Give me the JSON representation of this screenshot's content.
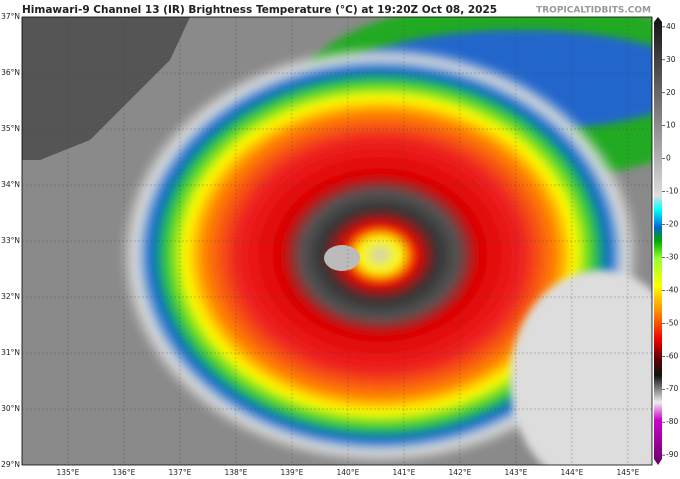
{
  "map": {
    "title": "Himawari-9 Channel 13 (IR) Brightness Temperature (°C) at 19:20Z Oct 08, 2025",
    "credit": "TROPICALTIDBITS.COM",
    "lat_range": [
      29,
      37
    ],
    "lat_ticks": [
      {
        "value": 37,
        "label": "37°N"
      },
      {
        "value": 36,
        "label": "36°N"
      },
      {
        "value": 35,
        "label": "35°N"
      },
      {
        "value": 34,
        "label": "34°N"
      },
      {
        "value": 33,
        "label": "33°N"
      },
      {
        "value": 32,
        "label": "32°N"
      },
      {
        "value": 31,
        "label": "31°N"
      },
      {
        "value": 30,
        "label": "30°N"
      },
      {
        "value": 29,
        "label": "29°N"
      }
    ],
    "lon_range": [
      134.18,
      145.43
    ],
    "lon_ticks": [
      {
        "value": 135,
        "label": "135°E"
      },
      {
        "value": 136,
        "label": "136°E"
      },
      {
        "value": 137,
        "label": "137°E"
      },
      {
        "value": 138,
        "label": "138°E"
      },
      {
        "value": 139,
        "label": "139°E"
      },
      {
        "value": 140,
        "label": "140°E"
      },
      {
        "value": 141,
        "label": "141°E"
      },
      {
        "value": 142,
        "label": "142°E"
      },
      {
        "value": 143,
        "label": "143°E"
      },
      {
        "value": 144,
        "label": "144°E"
      },
      {
        "value": 145,
        "label": "145°E"
      }
    ],
    "colorbar_range": [
      43,
      -93
    ],
    "colorbar_ticks": [
      40,
      30,
      20,
      10,
      0,
      -10,
      -20,
      -30,
      -40,
      -50,
      -60,
      -70,
      -80,
      -90
    ]
  }
}
